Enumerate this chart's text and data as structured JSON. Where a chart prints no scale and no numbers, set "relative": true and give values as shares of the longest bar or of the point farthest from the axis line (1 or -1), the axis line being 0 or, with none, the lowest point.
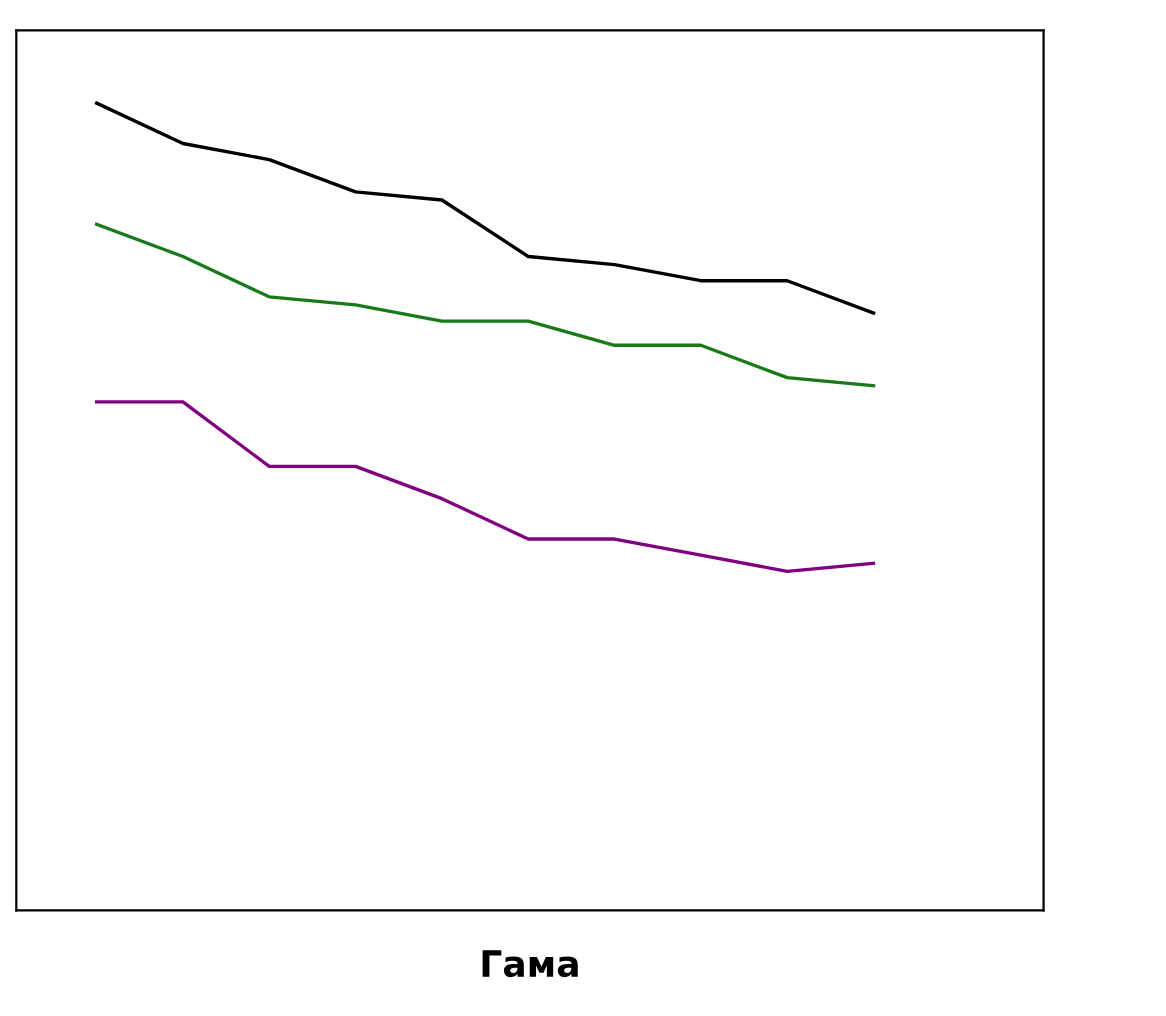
{
  "chart_data": {
    "type": "line",
    "relative": true,
    "xlabel": "Гама",
    "grid": false,
    "marker": "none",
    "line_style": "solid",
    "tick_labels": false,
    "categories": [
      null,
      null,
      null,
      null,
      null,
      null,
      null,
      null,
      null,
      null
    ],
    "series": [
      {
        "color": "#000000",
        "values": [
          1,
          0.95,
          0.93,
          0.89,
          0.88,
          0.81,
          0.8,
          0.78,
          0.78,
          0.74
        ]
      },
      {
        "color": "#1a7a1a",
        "values": [
          0.85,
          0.81,
          0.76,
          0.75,
          0.73,
          0.73,
          0.7,
          0.7,
          0.66,
          0.65
        ]
      },
      {
        "color": "#800080",
        "values": [
          0.63,
          0.63,
          0.55,
          0.55,
          0.51,
          0.46,
          0.46,
          0.44,
          0.42,
          0.43
        ]
      }
    ]
  }
}
